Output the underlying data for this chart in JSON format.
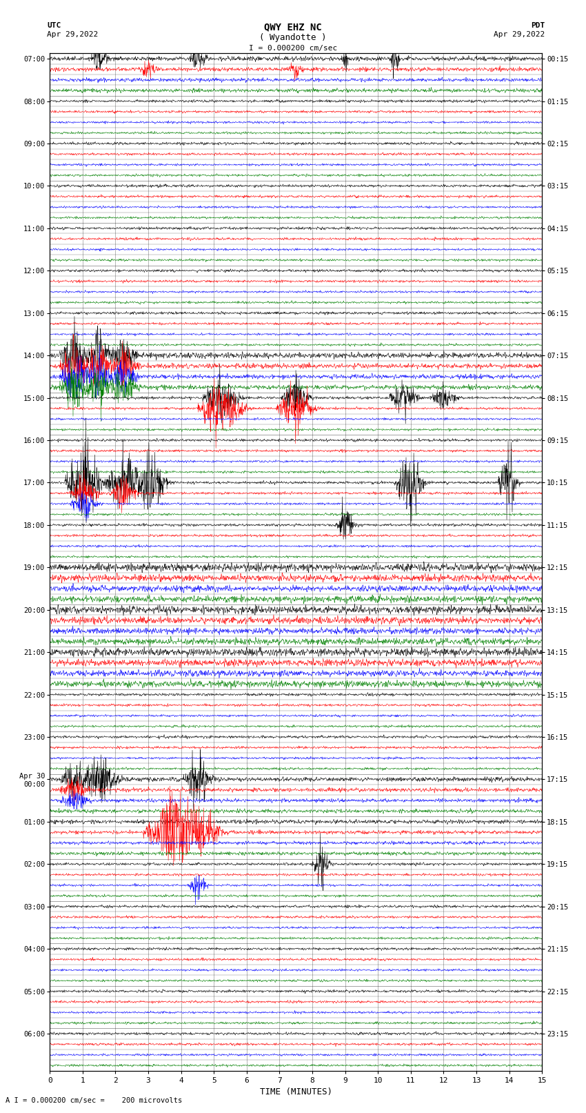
{
  "title_line1": "QWY EHZ NC",
  "title_line2": "( Wyandotte )",
  "scale_label": "I = 0.000200 cm/sec",
  "bottom_label": "A I = 0.000200 cm/sec =    200 microvolts",
  "xlabel": "TIME (MINUTES)",
  "left_header": "UTC",
  "left_date": "Apr 29,2022",
  "right_header": "PDT",
  "right_date": "Apr 29,2022",
  "utc_labels": [
    "07:00",
    "08:00",
    "09:00",
    "10:00",
    "11:00",
    "12:00",
    "13:00",
    "14:00",
    "15:00",
    "16:00",
    "17:00",
    "18:00",
    "19:00",
    "20:00",
    "21:00",
    "22:00",
    "23:00",
    "Apr 30\n00:00",
    "01:00",
    "02:00",
    "03:00",
    "04:00",
    "05:00",
    "06:00"
  ],
  "pdt_labels": [
    "00:15",
    "01:15",
    "02:15",
    "03:15",
    "04:15",
    "05:15",
    "06:15",
    "07:15",
    "08:15",
    "09:15",
    "10:15",
    "11:15",
    "12:15",
    "13:15",
    "14:15",
    "15:15",
    "16:15",
    "17:15",
    "18:15",
    "19:15",
    "20:15",
    "21:15",
    "22:15",
    "23:15"
  ],
  "n_hours": 24,
  "n_channels": 4,
  "bg_color": "#ffffff",
  "trace_colors": [
    "#000000",
    "#ff0000",
    "#0000ff",
    "#008000"
  ],
  "figsize": [
    8.5,
    16.13
  ],
  "dpi": 100
}
